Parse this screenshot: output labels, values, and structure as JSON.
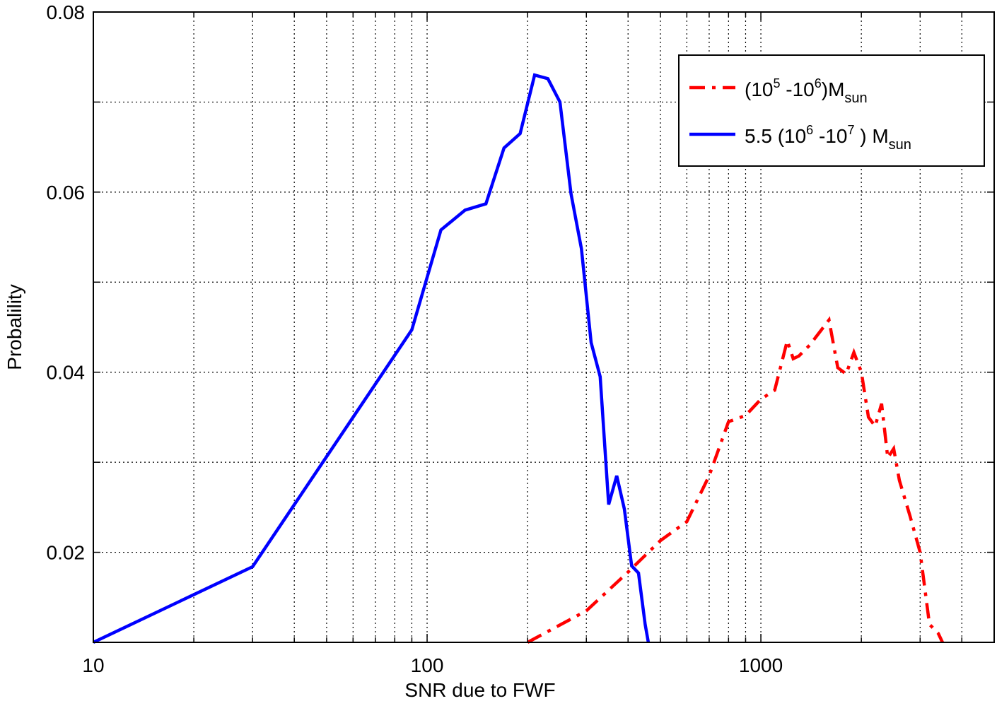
{
  "chart_data": {
    "type": "line",
    "xlabel": "SNR due to FWF",
    "ylabel": "Probalility",
    "xscale": "log",
    "xlim": [
      10,
      5000
    ],
    "ylim": [
      0.01,
      0.08
    ],
    "grid": true,
    "legend_position": "top-right",
    "x_ticks": [
      10,
      100,
      1000
    ],
    "x_tick_labels": [
      "10",
      "100",
      "1000"
    ],
    "y_ticks": [
      0.02,
      0.04,
      0.06,
      0.08
    ],
    "y_tick_labels": [
      "0.02",
      "0.04",
      "0.06",
      "0.08"
    ],
    "series": [
      {
        "name": "(10^5 -10^6)M_sun",
        "legend": {
          "pre": "(10",
          "s1": "5",
          "mid": " -10",
          "s2": "6",
          "post": ")M",
          "sub": "sun"
        },
        "color": "#ff0000",
        "style": "dashdot",
        "x": [
          200,
          300,
          400,
          500,
          600,
          700,
          800,
          900,
          1000,
          1100,
          1200,
          1250,
          1300,
          1400,
          1600,
          1700,
          1800,
          1900,
          2000,
          2100,
          2200,
          2300,
          2400,
          2500,
          2600,
          2800,
          3000,
          3200,
          3400,
          3500
        ],
        "y": [
          0.01,
          0.0135,
          0.0178,
          0.0213,
          0.0234,
          0.0285,
          0.0345,
          0.0352,
          0.037,
          0.038,
          0.0435,
          0.0415,
          0.0418,
          0.043,
          0.0458,
          0.0405,
          0.0398,
          0.0422,
          0.04,
          0.035,
          0.034,
          0.0365,
          0.0305,
          0.0315,
          0.028,
          0.024,
          0.02,
          0.012,
          0.011,
          0.01
        ]
      },
      {
        "name": "5.5 (10^6 -10^7 ) M_sun",
        "legend": {
          "pre": "5.5 (10",
          "s1": "6",
          "mid": "  -10",
          "s2": "7",
          "post": " ) M",
          "sub": "sun"
        },
        "color": "#0000ff",
        "style": "solid",
        "x": [
          10,
          30,
          90,
          110,
          130,
          150,
          170,
          190,
          210,
          230,
          250,
          270,
          290,
          310,
          330,
          350,
          370,
          390,
          410,
          430,
          450,
          460
        ],
        "y": [
          0.01,
          0.0184,
          0.0447,
          0.0558,
          0.058,
          0.0587,
          0.0649,
          0.0665,
          0.073,
          0.0726,
          0.07,
          0.0598,
          0.0537,
          0.0433,
          0.0395,
          0.0253,
          0.0285,
          0.0248,
          0.0185,
          0.0177,
          0.012,
          0.01
        ]
      }
    ]
  }
}
